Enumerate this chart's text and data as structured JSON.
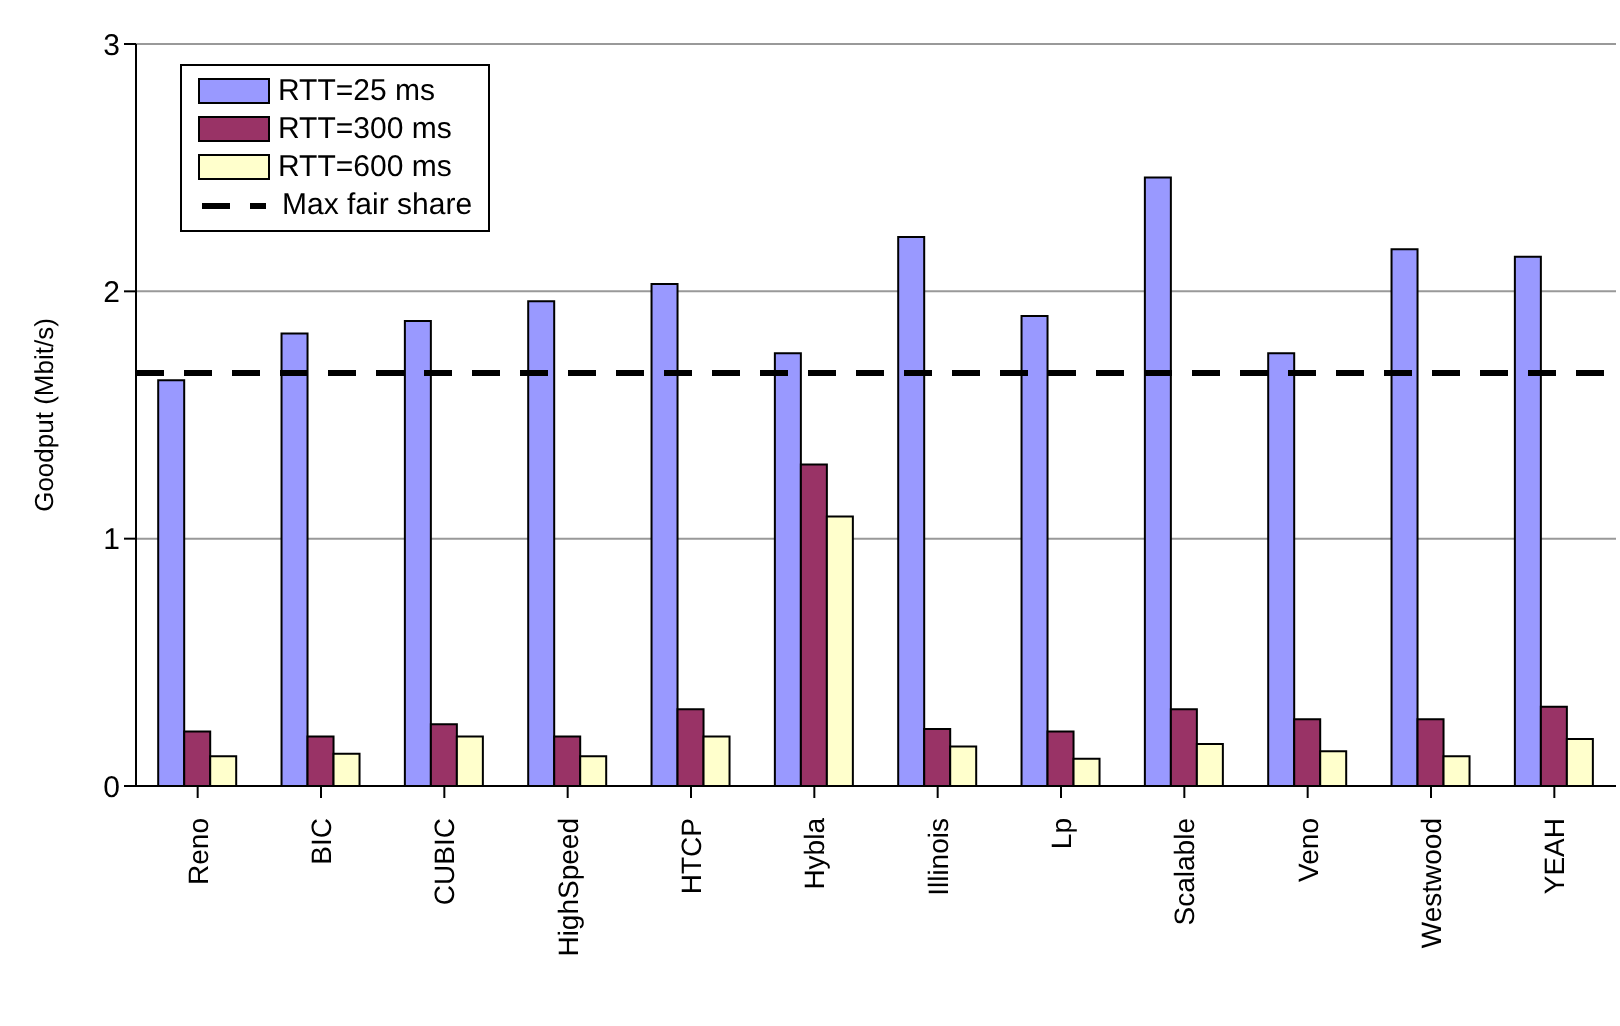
{
  "chart_data": {
    "type": "bar",
    "ylabel": "Goodput (Mbit/s)",
    "categories": [
      "Reno",
      "BIC",
      "CUBIC",
      "HighSpeed",
      "HTCP",
      "Hybla",
      "Illinois",
      "Lp",
      "Scalable",
      "Veno",
      "Westwood",
      "YEAH"
    ],
    "series": [
      {
        "name": "RTT=25 ms",
        "color": "#9999ff",
        "values": [
          1.64,
          1.83,
          1.88,
          1.96,
          2.03,
          1.75,
          2.22,
          1.9,
          2.46,
          1.75,
          2.17,
          2.14
        ]
      },
      {
        "name": "RTT=300 ms",
        "color": "#993366",
        "values": [
          0.22,
          0.2,
          0.25,
          0.2,
          0.31,
          1.3,
          0.23,
          0.22,
          0.31,
          0.27,
          0.27,
          0.32
        ]
      },
      {
        "name": "RTT=600 ms",
        "color": "#ffffcc",
        "values": [
          0.12,
          0.13,
          0.2,
          0.12,
          0.2,
          1.09,
          0.16,
          0.11,
          0.17,
          0.14,
          0.12,
          0.19
        ]
      }
    ],
    "ref_lines": [
      {
        "axis": "y",
        "value": 1.67,
        "label": "Max fair share",
        "color": "#000000",
        "line_style": "dashed"
      }
    ],
    "ylim": [
      0,
      3
    ],
    "yticks": [
      0,
      1,
      2,
      3
    ],
    "grid": "y",
    "legend": "top left"
  }
}
